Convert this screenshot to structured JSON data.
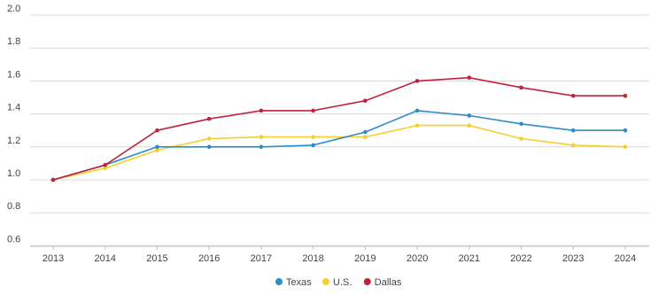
{
  "chart_data": {
    "type": "line",
    "title": "",
    "xlabel": "",
    "ylabel": "",
    "categories": [
      "2013",
      "2014",
      "2015",
      "2016",
      "2017",
      "2018",
      "2019",
      "2020",
      "2021",
      "2022",
      "2023",
      "2024"
    ],
    "ylim": [
      0.55,
      2.0
    ],
    "yticks": [
      0.6,
      0.8,
      1.0,
      1.2,
      1.4,
      1.6,
      1.8,
      2.0
    ],
    "ytick_labels": [
      "0.6",
      "0.8",
      "1.0",
      "1.2",
      "1.4",
      "1.6",
      "1.8",
      "2.0"
    ],
    "grid": "horizontal",
    "legend_position": "bottom-center",
    "series": [
      {
        "name": "Texas",
        "color": "#2b8ec9",
        "values": [
          1.0,
          1.09,
          1.2,
          1.2,
          1.2,
          1.21,
          1.29,
          1.42,
          1.39,
          1.34,
          1.3,
          1.3
        ]
      },
      {
        "name": "U.S.",
        "color": "#f7cf2a",
        "values": [
          1.0,
          1.07,
          1.18,
          1.25,
          1.26,
          1.26,
          1.26,
          1.33,
          1.33,
          1.25,
          1.21,
          1.2
        ]
      },
      {
        "name": "Dallas",
        "color": "#c1223c",
        "values": [
          1.0,
          1.09,
          1.3,
          1.37,
          1.42,
          1.42,
          1.48,
          1.6,
          1.62,
          1.56,
          1.51,
          1.51
        ]
      }
    ]
  }
}
